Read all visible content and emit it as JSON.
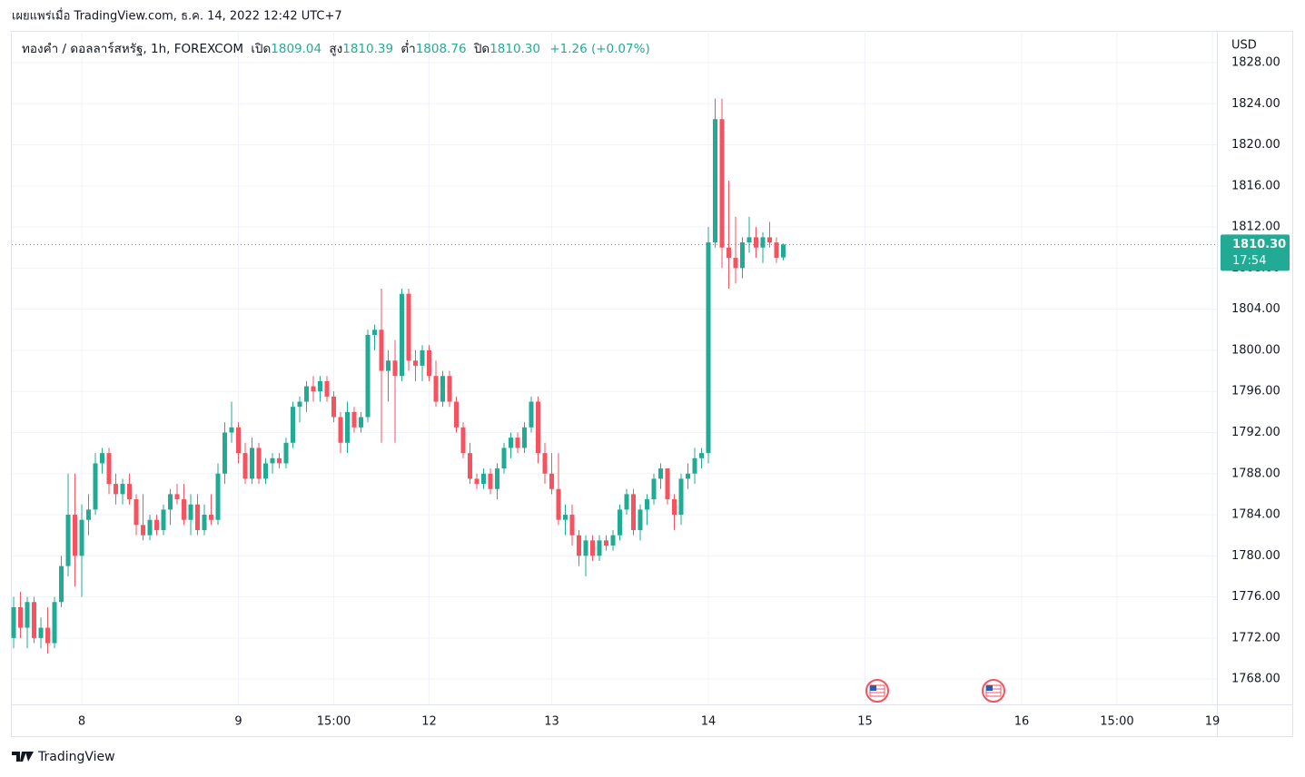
{
  "attribution": "เผยแพร่เมื่อ TradingView.com, ธ.ค. 14, 2022 12:42 UTC+7",
  "brand": "TradingView",
  "chart_data": {
    "type": "candlestick",
    "header": {
      "symbol": "ทองคำ / ดอลลาร์สหรัฐ, 1h, FOREXCOM",
      "open_label": "เปิด",
      "open": "1809.04",
      "high_label": "สูง",
      "high": "1810.39",
      "low_label": "ต่ำ",
      "low": "1808.76",
      "close_label": "ปิด",
      "close": "1810.30",
      "change": "+1.26 (+0.07%)"
    },
    "y_axis_label": "USD",
    "last_price_label": "1810.30",
    "countdown": "17:54",
    "up_color": "#22ab94",
    "down_color": "#f7525f",
    "grid": true,
    "x": [
      0,
      1,
      2,
      3,
      4,
      5,
      6,
      7,
      8,
      9,
      10,
      11,
      12,
      13,
      14,
      15,
      16,
      17,
      18,
      19,
      20,
      21,
      22,
      23,
      24,
      25,
      26,
      27,
      28,
      29,
      30,
      31,
      32,
      33,
      34,
      35,
      36,
      37,
      38,
      39,
      40,
      41,
      42,
      43,
      44,
      45,
      46,
      47,
      48,
      49,
      50,
      51,
      52,
      53,
      54,
      55,
      56,
      57,
      58,
      59,
      60,
      61,
      62,
      63,
      64,
      65,
      66,
      67,
      68,
      69,
      70,
      71,
      72,
      73,
      74,
      75,
      76,
      77,
      78,
      79,
      80,
      81,
      82,
      83,
      84,
      85,
      86,
      87,
      88,
      89,
      90,
      91,
      92,
      93,
      94,
      95,
      96,
      97,
      98,
      99,
      100,
      101,
      102,
      103,
      104,
      105,
      106,
      107,
      108,
      109,
      110,
      111,
      112,
      113
    ],
    "open": [
      1772,
      1775,
      1773,
      1775.5,
      1772,
      1773,
      1771.5,
      1775.5,
      1779,
      1784,
      1780,
      1783.5,
      1784.5,
      1789,
      1790,
      1787,
      1786,
      1787,
      1785.5,
      1783,
      1782,
      1783.5,
      1782.5,
      1784.5,
      1786,
      1785.5,
      1783.5,
      1785,
      1782.5,
      1784,
      1783.5,
      1788,
      1792,
      1792.5,
      1790,
      1787.5,
      1790.5,
      1787.5,
      1789,
      1789.5,
      1789,
      1791,
      1794.5,
      1795,
      1796.5,
      1796,
      1797,
      1795.5,
      1793.5,
      1791,
      1794,
      1792.5,
      1793.5,
      1801.5,
      1802,
      1798,
      1799,
      1797.5,
      1805.5,
      1799,
      1798.5,
      1800,
      1797.5,
      1795,
      1797.5,
      1795,
      1792.5,
      1790,
      1787.5,
      1787,
      1788,
      1786.5,
      1788.5,
      1790.5,
      1791.5,
      1790.5,
      1792.5,
      1795,
      1790,
      1788,
      1786.5,
      1783.5,
      1784,
      1782,
      1780,
      1781.5,
      1780,
      1781.5,
      1781,
      1782,
      1784.5,
      1786,
      1782.5,
      1784.5,
      1785.5,
      1787.5,
      1788.5,
      1785.5,
      1784,
      1787.5,
      1788,
      1789.5,
      1790,
      1810.5,
      1822.5,
      1810,
      1809,
      1808,
      1810.5,
      1811,
      1810,
      1811,
      1810.5,
      1809.04
    ],
    "high": [
      1776,
      1776.5,
      1776,
      1776,
      1774,
      1775,
      1776,
      1780,
      1788,
      1788,
      1785,
      1786,
      1790,
      1790.5,
      1790.5,
      1788,
      1787.5,
      1788,
      1786,
      1786,
      1784,
      1784,
      1785,
      1786.5,
      1787,
      1787,
      1786,
      1786,
      1785,
      1786,
      1789,
      1793,
      1795,
      1793,
      1791,
      1791.5,
      1791,
      1789.5,
      1790,
      1790,
      1791.5,
      1795,
      1795.5,
      1797,
      1797.5,
      1797.5,
      1797.5,
      1796,
      1794,
      1795,
      1794.5,
      1794,
      1802,
      1802.5,
      1806,
      1800,
      1801,
      1806,
      1806,
      1800,
      1800.5,
      1800.5,
      1799,
      1798,
      1798,
      1795.5,
      1793,
      1791,
      1788,
      1788.5,
      1788.5,
      1789,
      1791,
      1792,
      1792,
      1793,
      1795.5,
      1795.5,
      1791,
      1790,
      1790,
      1785,
      1785,
      1782.5,
      1782,
      1782,
      1782,
      1782,
      1782.5,
      1785,
      1786.5,
      1786.5,
      1785,
      1786,
      1788,
      1789,
      1788.5,
      1786,
      1788,
      1789,
      1790.5,
      1790.5,
      1812,
      1824.5,
      1824.5,
      1816.5,
      1813,
      1811,
      1813,
      1812,
      1811.5,
      1812.5,
      1811,
      1810.39
    ],
    "low": [
      1771,
      1772,
      1771,
      1771.5,
      1771,
      1770.5,
      1771,
      1775,
      1778,
      1777,
      1776,
      1782,
      1784,
      1788,
      1786,
      1785,
      1785,
      1785,
      1782,
      1781.5,
      1781.5,
      1782,
      1782,
      1783,
      1785,
      1783,
      1782,
      1782,
      1782,
      1783,
      1783,
      1787,
      1791,
      1789,
      1787,
      1787,
      1787,
      1787,
      1788,
      1788.5,
      1788.5,
      1790.5,
      1793,
      1794,
      1795,
      1795,
      1795,
      1793,
      1790,
      1790,
      1792,
      1792,
      1793,
      1800,
      1791,
      1795,
      1791,
      1797,
      1798,
      1797,
      1797,
      1797,
      1794.5,
      1794.5,
      1794.5,
      1792,
      1789.5,
      1787,
      1786.5,
      1786.5,
      1786,
      1785.5,
      1788,
      1789.5,
      1790,
      1790,
      1792,
      1789,
      1787,
      1786,
      1783,
      1782,
      1781,
      1779,
      1778,
      1779.5,
      1779.5,
      1780.5,
      1780.5,
      1781.5,
      1784,
      1782,
      1781.5,
      1783,
      1785,
      1786.5,
      1785,
      1782.5,
      1783,
      1786.5,
      1787,
      1788.5,
      1789,
      1810,
      1808,
      1806,
      1806.5,
      1807,
      1809.5,
      1809,
      1808.5,
      1810,
      1808.5,
      1808.76
    ],
    "close": [
      1775,
      1773,
      1775.5,
      1772,
      1773,
      1771.5,
      1775.5,
      1779,
      1784,
      1780,
      1783.5,
      1784.5,
      1789,
      1790,
      1787,
      1786,
      1787,
      1785.5,
      1783,
      1782,
      1783.5,
      1782.5,
      1784.5,
      1786,
      1785.5,
      1783.5,
      1785,
      1782.5,
      1784,
      1783.5,
      1788,
      1792,
      1792.5,
      1790,
      1787.5,
      1790.5,
      1787.5,
      1789,
      1789.5,
      1789,
      1791,
      1794.5,
      1795,
      1796.5,
      1796,
      1797,
      1795.5,
      1793.5,
      1791,
      1794,
      1792.5,
      1793.5,
      1801.5,
      1802,
      1798,
      1799,
      1797.5,
      1805.5,
      1799,
      1798.5,
      1800,
      1797.5,
      1795,
      1797.5,
      1795,
      1792.5,
      1790,
      1787.5,
      1787,
      1788,
      1786.5,
      1788.5,
      1790.5,
      1791.5,
      1790.5,
      1792.5,
      1795,
      1790,
      1788,
      1786.5,
      1783.5,
      1784,
      1782,
      1780,
      1781.5,
      1780,
      1781.5,
      1781,
      1782,
      1784.5,
      1786,
      1782.5,
      1784.5,
      1785.5,
      1787.5,
      1788.5,
      1785.5,
      1784,
      1787.5,
      1788,
      1789.5,
      1790,
      1810.5,
      1822.5,
      1810,
      1809,
      1808,
      1810.5,
      1811,
      1810,
      1811,
      1810.5,
      1809,
      1810.3
    ],
    "xlim": [
      -0.27,
      176.67
    ],
    "xticks": [
      {
        "value": 10,
        "label": "8"
      },
      {
        "value": 33,
        "label": "9"
      },
      {
        "value": 47,
        "label": "15:00"
      },
      {
        "value": 61,
        "label": "12"
      },
      {
        "value": 79,
        "label": "13"
      },
      {
        "value": 102,
        "label": "14"
      },
      {
        "value": 125,
        "label": "15"
      },
      {
        "value": 148,
        "label": "16"
      },
      {
        "value": 162,
        "label": "15:00"
      },
      {
        "value": 176,
        "label": "19"
      }
    ],
    "ylim": [
      1765.54,
      1831.09
    ],
    "yticks": [
      {
        "value": 1768,
        "label": "1768.00"
      },
      {
        "value": 1772,
        "label": "1772.00"
      },
      {
        "value": 1776,
        "label": "1776.00"
      },
      {
        "value": 1780,
        "label": "1780.00"
      },
      {
        "value": 1784,
        "label": "1784.00"
      },
      {
        "value": 1788,
        "label": "1788.00"
      },
      {
        "value": 1792,
        "label": "1792.00"
      },
      {
        "value": 1796,
        "label": "1796.00"
      },
      {
        "value": 1800,
        "label": "1800.00"
      },
      {
        "value": 1804,
        "label": "1804.00"
      },
      {
        "value": 1808,
        "label": "1808.00"
      },
      {
        "value": 1812,
        "label": "1812.00"
      },
      {
        "value": 1816,
        "label": "1816.00"
      },
      {
        "value": 1820,
        "label": "1820.00"
      },
      {
        "value": 1824,
        "label": "1824.00"
      },
      {
        "value": 1828,
        "label": "1828.00"
      }
    ]
  }
}
